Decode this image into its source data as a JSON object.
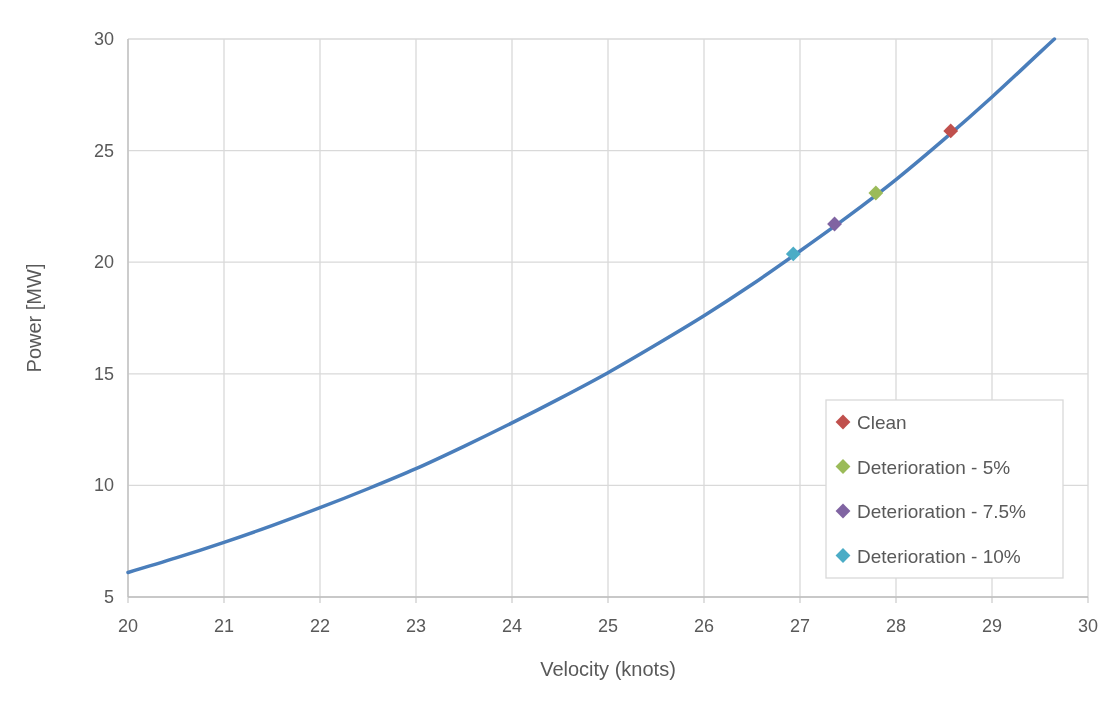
{
  "chart_data": {
    "type": "scatter",
    "xlabel": "Velocity (knots)",
    "ylabel": "Power [MW]",
    "xlim": [
      20,
      30
    ],
    "ylim": [
      5,
      30
    ],
    "xticks": [
      20,
      21,
      22,
      23,
      24,
      25,
      26,
      27,
      28,
      29,
      30
    ],
    "yticks": [
      5,
      10,
      15,
      20,
      25,
      30
    ],
    "grid": true,
    "legend": "bottom right",
    "marker": "diamond",
    "series": [
      {
        "type": "line",
        "marker": "none",
        "color": "#4a7ebb",
        "x": [
          20,
          20.5,
          21,
          21.5,
          22,
          22.5,
          23,
          23.5,
          24,
          24.5,
          25,
          25.5,
          26,
          26.5,
          27,
          27.5,
          28,
          28.5,
          29,
          29.5,
          29.65
        ],
        "values": [
          6.1,
          6.75,
          7.45,
          8.2,
          9.0,
          9.85,
          10.75,
          11.75,
          12.8,
          13.9,
          15.05,
          16.3,
          17.6,
          19.0,
          20.5,
          22.05,
          23.7,
          25.5,
          27.4,
          29.4,
          30
        ]
      },
      {
        "name": "Clean",
        "color": "#c0504d",
        "x": [
          28.57
        ],
        "values": [
          25.88
        ]
      },
      {
        "name": "Deterioration - 5%",
        "color": "#9bbb59",
        "x": [
          27.79
        ],
        "values": [
          23.1
        ]
      },
      {
        "name": "Deterioration - 7.5%",
        "color": "#8064a2",
        "x": [
          27.36
        ],
        "values": [
          21.71
        ]
      },
      {
        "name": "Deterioration - 10%",
        "color": "#4bacc6",
        "x": [
          26.93
        ],
        "values": [
          20.37
        ]
      }
    ]
  }
}
